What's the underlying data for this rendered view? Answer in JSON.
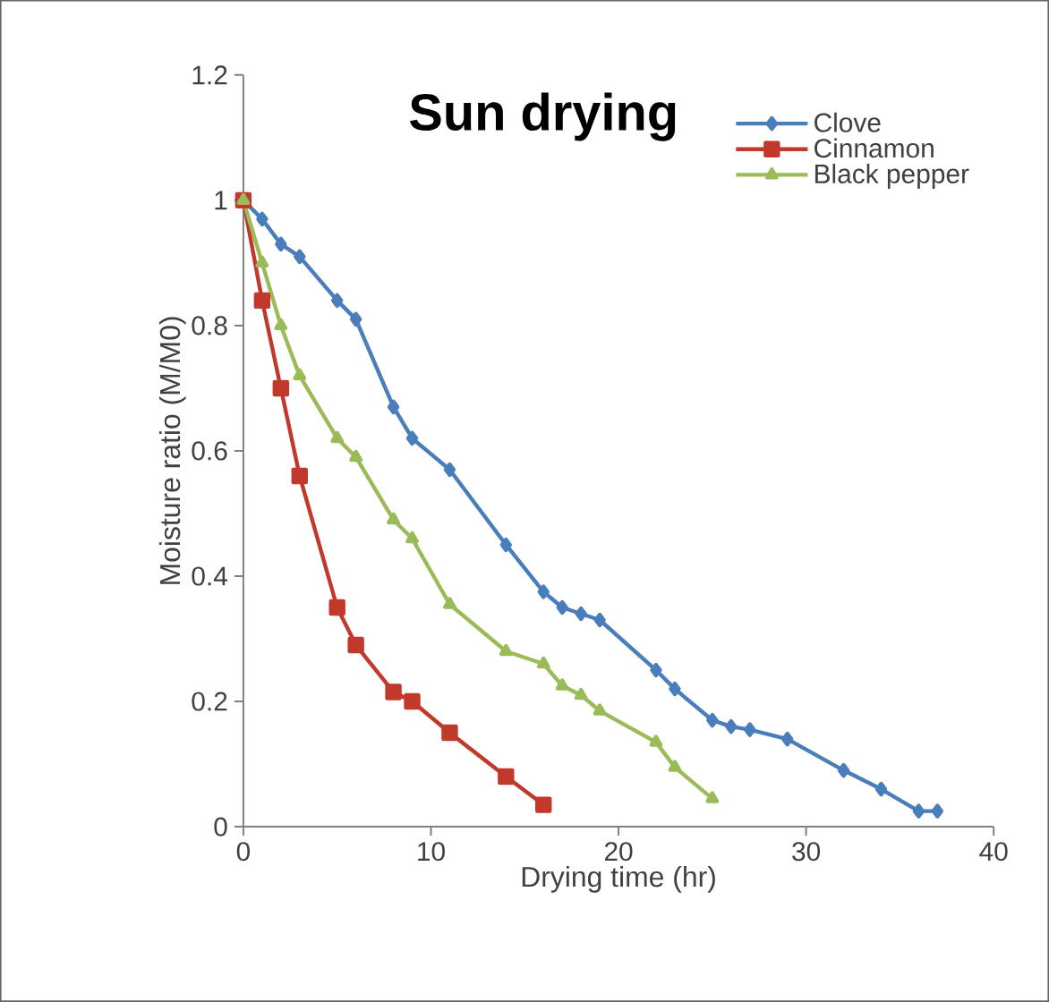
{
  "chart_data": {
    "type": "line",
    "title": "Sun drying",
    "xlabel": "Drying time (hr)",
    "ylabel": "Moisture ratio (M/M0)",
    "xlim": [
      0,
      40
    ],
    "xticks": [
      0,
      10,
      20,
      30,
      40
    ],
    "ylim": [
      0,
      1.2
    ],
    "yticks": [
      0,
      {
        "value": 0.2,
        "label": "0.2"
      },
      {
        "value": 0.4,
        "label": "0.4"
      },
      {
        "value": 0.6,
        "label": "0.6"
      },
      {
        "value": 0.8,
        "label": "0.8"
      },
      1,
      {
        "value": 1.2,
        "label": "1.2"
      }
    ],
    "grid": false,
    "legend": "top right",
    "line_style": "solid",
    "series": [
      {
        "name": "Clove",
        "color": "#4a7ebb",
        "marker": "diamond",
        "x": [
          0,
          1,
          2,
          3,
          5,
          6,
          8,
          9,
          11,
          14,
          16,
          17,
          18,
          19,
          22,
          23,
          25,
          26,
          27,
          29,
          32,
          34,
          36,
          37
        ],
        "values": [
          1,
          0.97,
          0.93,
          0.91,
          0.84,
          0.81,
          0.67,
          0.62,
          0.57,
          0.45,
          0.375,
          0.35,
          0.34,
          0.33,
          0.25,
          0.22,
          0.17,
          0.16,
          0.155,
          0.14,
          0.09,
          0.06,
          0.025,
          0.025
        ]
      },
      {
        "name": "Cinnamon",
        "color": "#c0392b",
        "marker": "square",
        "x": [
          0,
          1,
          2,
          3,
          5,
          6,
          8,
          9,
          11,
          14,
          16
        ],
        "values": [
          1,
          0.84,
          0.7,
          0.56,
          0.35,
          0.29,
          0.215,
          0.2,
          0.15,
          0.08,
          0.035
        ]
      },
      {
        "name": "Black pepper",
        "color": "#9bbb59",
        "marker": "triangle",
        "x": [
          0,
          1,
          2,
          3,
          5,
          6,
          8,
          9,
          11,
          14,
          16,
          17,
          18,
          19,
          22,
          23,
          25
        ],
        "values": [
          1,
          0.9,
          0.8,
          0.72,
          0.62,
          0.59,
          0.49,
          0.46,
          0.355,
          0.28,
          0.26,
          0.225,
          0.21,
          0.185,
          0.135,
          0.095,
          0.045
        ]
      }
    ]
  }
}
